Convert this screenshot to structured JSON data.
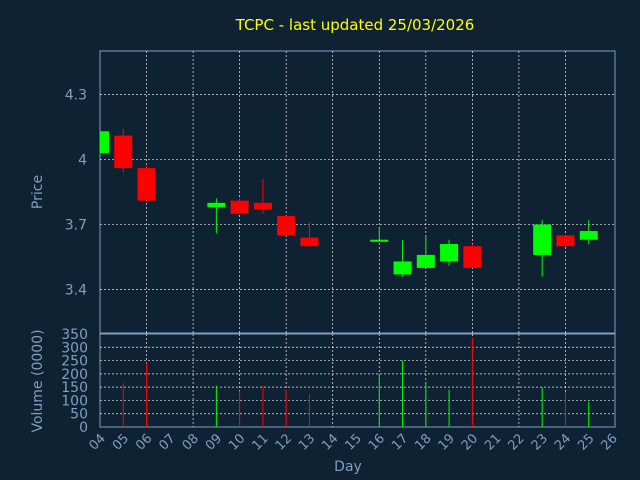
{
  "title": "TCPC - last updated 25/03/2026",
  "colors": {
    "background": "#0f2233",
    "title": "#ffff00",
    "axis_text": "#7f9fbf",
    "up": "#00ff00",
    "down": "#ff0000",
    "grid": "#ffffff"
  },
  "chart_data": [
    {
      "type": "candlestick",
      "ylabel": "Price",
      "ylim": [
        3.2,
        4.5
      ],
      "yticks": [
        3.4,
        3.7,
        4,
        4.3
      ],
      "ytick_labels": [
        "3.4",
        "3.7",
        "4",
        "4.3"
      ],
      "grid": true,
      "x": [
        "04",
        "05",
        "06",
        "09",
        "10",
        "11",
        "12",
        "13",
        "16",
        "17",
        "18",
        "19",
        "20",
        "23",
        "24",
        "25"
      ],
      "open": [
        4.03,
        4.11,
        3.96,
        3.78,
        3.81,
        3.8,
        3.74,
        3.64,
        3.63,
        3.47,
        3.5,
        3.53,
        3.6,
        3.56,
        3.65,
        3.63
      ],
      "close": [
        4.13,
        3.96,
        3.81,
        3.8,
        3.75,
        3.77,
        3.65,
        3.6,
        3.63,
        3.53,
        3.56,
        3.61,
        3.5,
        3.7,
        3.6,
        3.67
      ],
      "high": [
        4.13,
        4.14,
        3.97,
        3.82,
        3.82,
        3.91,
        3.74,
        3.71,
        3.69,
        3.63,
        3.65,
        3.63,
        3.61,
        3.72,
        3.65,
        3.72
      ],
      "low": [
        4.03,
        3.94,
        3.81,
        3.66,
        3.75,
        3.75,
        3.65,
        3.6,
        3.63,
        3.46,
        3.5,
        3.51,
        3.5,
        3.46,
        3.6,
        3.61
      ]
    },
    {
      "type": "bar",
      "ylabel": "Volume (0000)",
      "xlabel": "Day",
      "ylim": [
        0,
        350
      ],
      "yticks": [
        0,
        50,
        100,
        150,
        200,
        250,
        300,
        350
      ],
      "ytick_labels": [
        "0",
        "50",
        "100",
        "150",
        "200",
        "250",
        "300",
        "350"
      ],
      "grid": true,
      "x_ticks": [
        "04",
        "05",
        "06",
        "07",
        "08",
        "09",
        "10",
        "11",
        "12",
        "13",
        "14",
        "15",
        "16",
        "17",
        "18",
        "19",
        "20",
        "21",
        "22",
        "23",
        "24",
        "25",
        "26"
      ],
      "categories": [
        "04",
        "05",
        "06",
        "09",
        "10",
        "11",
        "12",
        "13",
        "16",
        "17",
        "18",
        "19",
        "20",
        "23",
        "24",
        "25"
      ],
      "values": [
        0,
        165,
        240,
        155,
        135,
        155,
        140,
        125,
        200,
        250,
        170,
        140,
        335,
        150,
        130,
        95
      ],
      "direction": [
        "up",
        "down",
        "down",
        "up",
        "down",
        "down",
        "down",
        "down",
        "up",
        "up",
        "up",
        "up",
        "down",
        "up",
        "down",
        "up"
      ]
    }
  ]
}
